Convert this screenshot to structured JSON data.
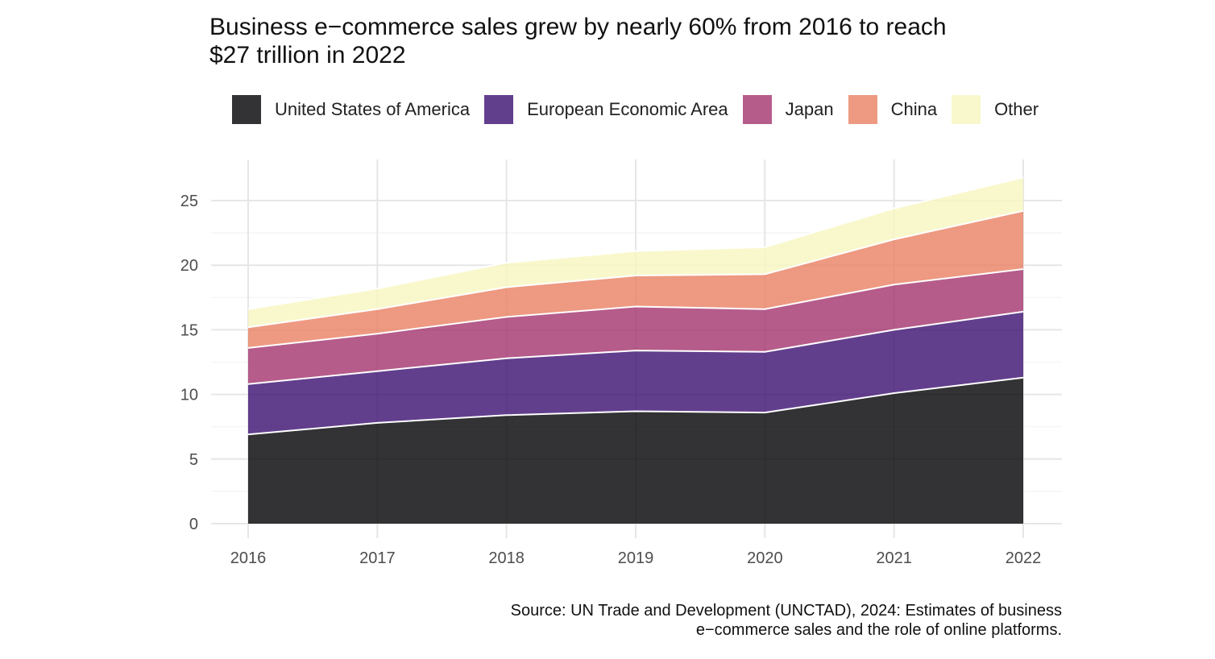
{
  "chart_data": {
    "type": "area",
    "stacked": true,
    "title_lines": [
      "Business e−commerce sales grew by nearly 60% from 2016 to reach",
      "$27 trillion in 2022"
    ],
    "xlabel": "",
    "ylabel": "",
    "x": [
      2016,
      2017,
      2018,
      2019,
      2020,
      2021,
      2022
    ],
    "x_tick_labels": [
      "2016",
      "2017",
      "2018",
      "2019",
      "2020",
      "2021",
      "2022"
    ],
    "y_ticks": [
      0,
      5,
      10,
      15,
      20,
      25
    ],
    "y_tick_labels": [
      "0",
      "5",
      "10",
      "15",
      "20",
      "25"
    ],
    "ylim": [
      0,
      28
    ],
    "grid": true,
    "legend_position": "top",
    "series": [
      {
        "name": "United States of America",
        "color": "#000004",
        "values": [
          6.9,
          7.8,
          8.4,
          8.7,
          8.6,
          10.1,
          11.3
        ]
      },
      {
        "name": "European Economic Area",
        "color": "#3B0F70",
        "values": [
          3.9,
          4.0,
          4.4,
          4.7,
          4.7,
          4.9,
          5.1
        ]
      },
      {
        "name": "Japan",
        "color": "#A2336E",
        "values": [
          2.8,
          2.9,
          3.2,
          3.4,
          3.3,
          3.5,
          3.3
        ]
      },
      {
        "name": "China",
        "color": "#EA7F61",
        "values": [
          1.6,
          1.9,
          2.3,
          2.4,
          2.7,
          3.5,
          4.5
        ]
      },
      {
        "name": "Other",
        "color": "#F8F6C0",
        "values": [
          1.4,
          1.6,
          1.9,
          1.9,
          2.1,
          2.4,
          2.6
        ]
      }
    ],
    "source_lines": [
      "Source: UN Trade and Development (UNCTAD), 2024: Estimates of business",
      "e−commerce sales and the role of online platforms."
    ]
  }
}
